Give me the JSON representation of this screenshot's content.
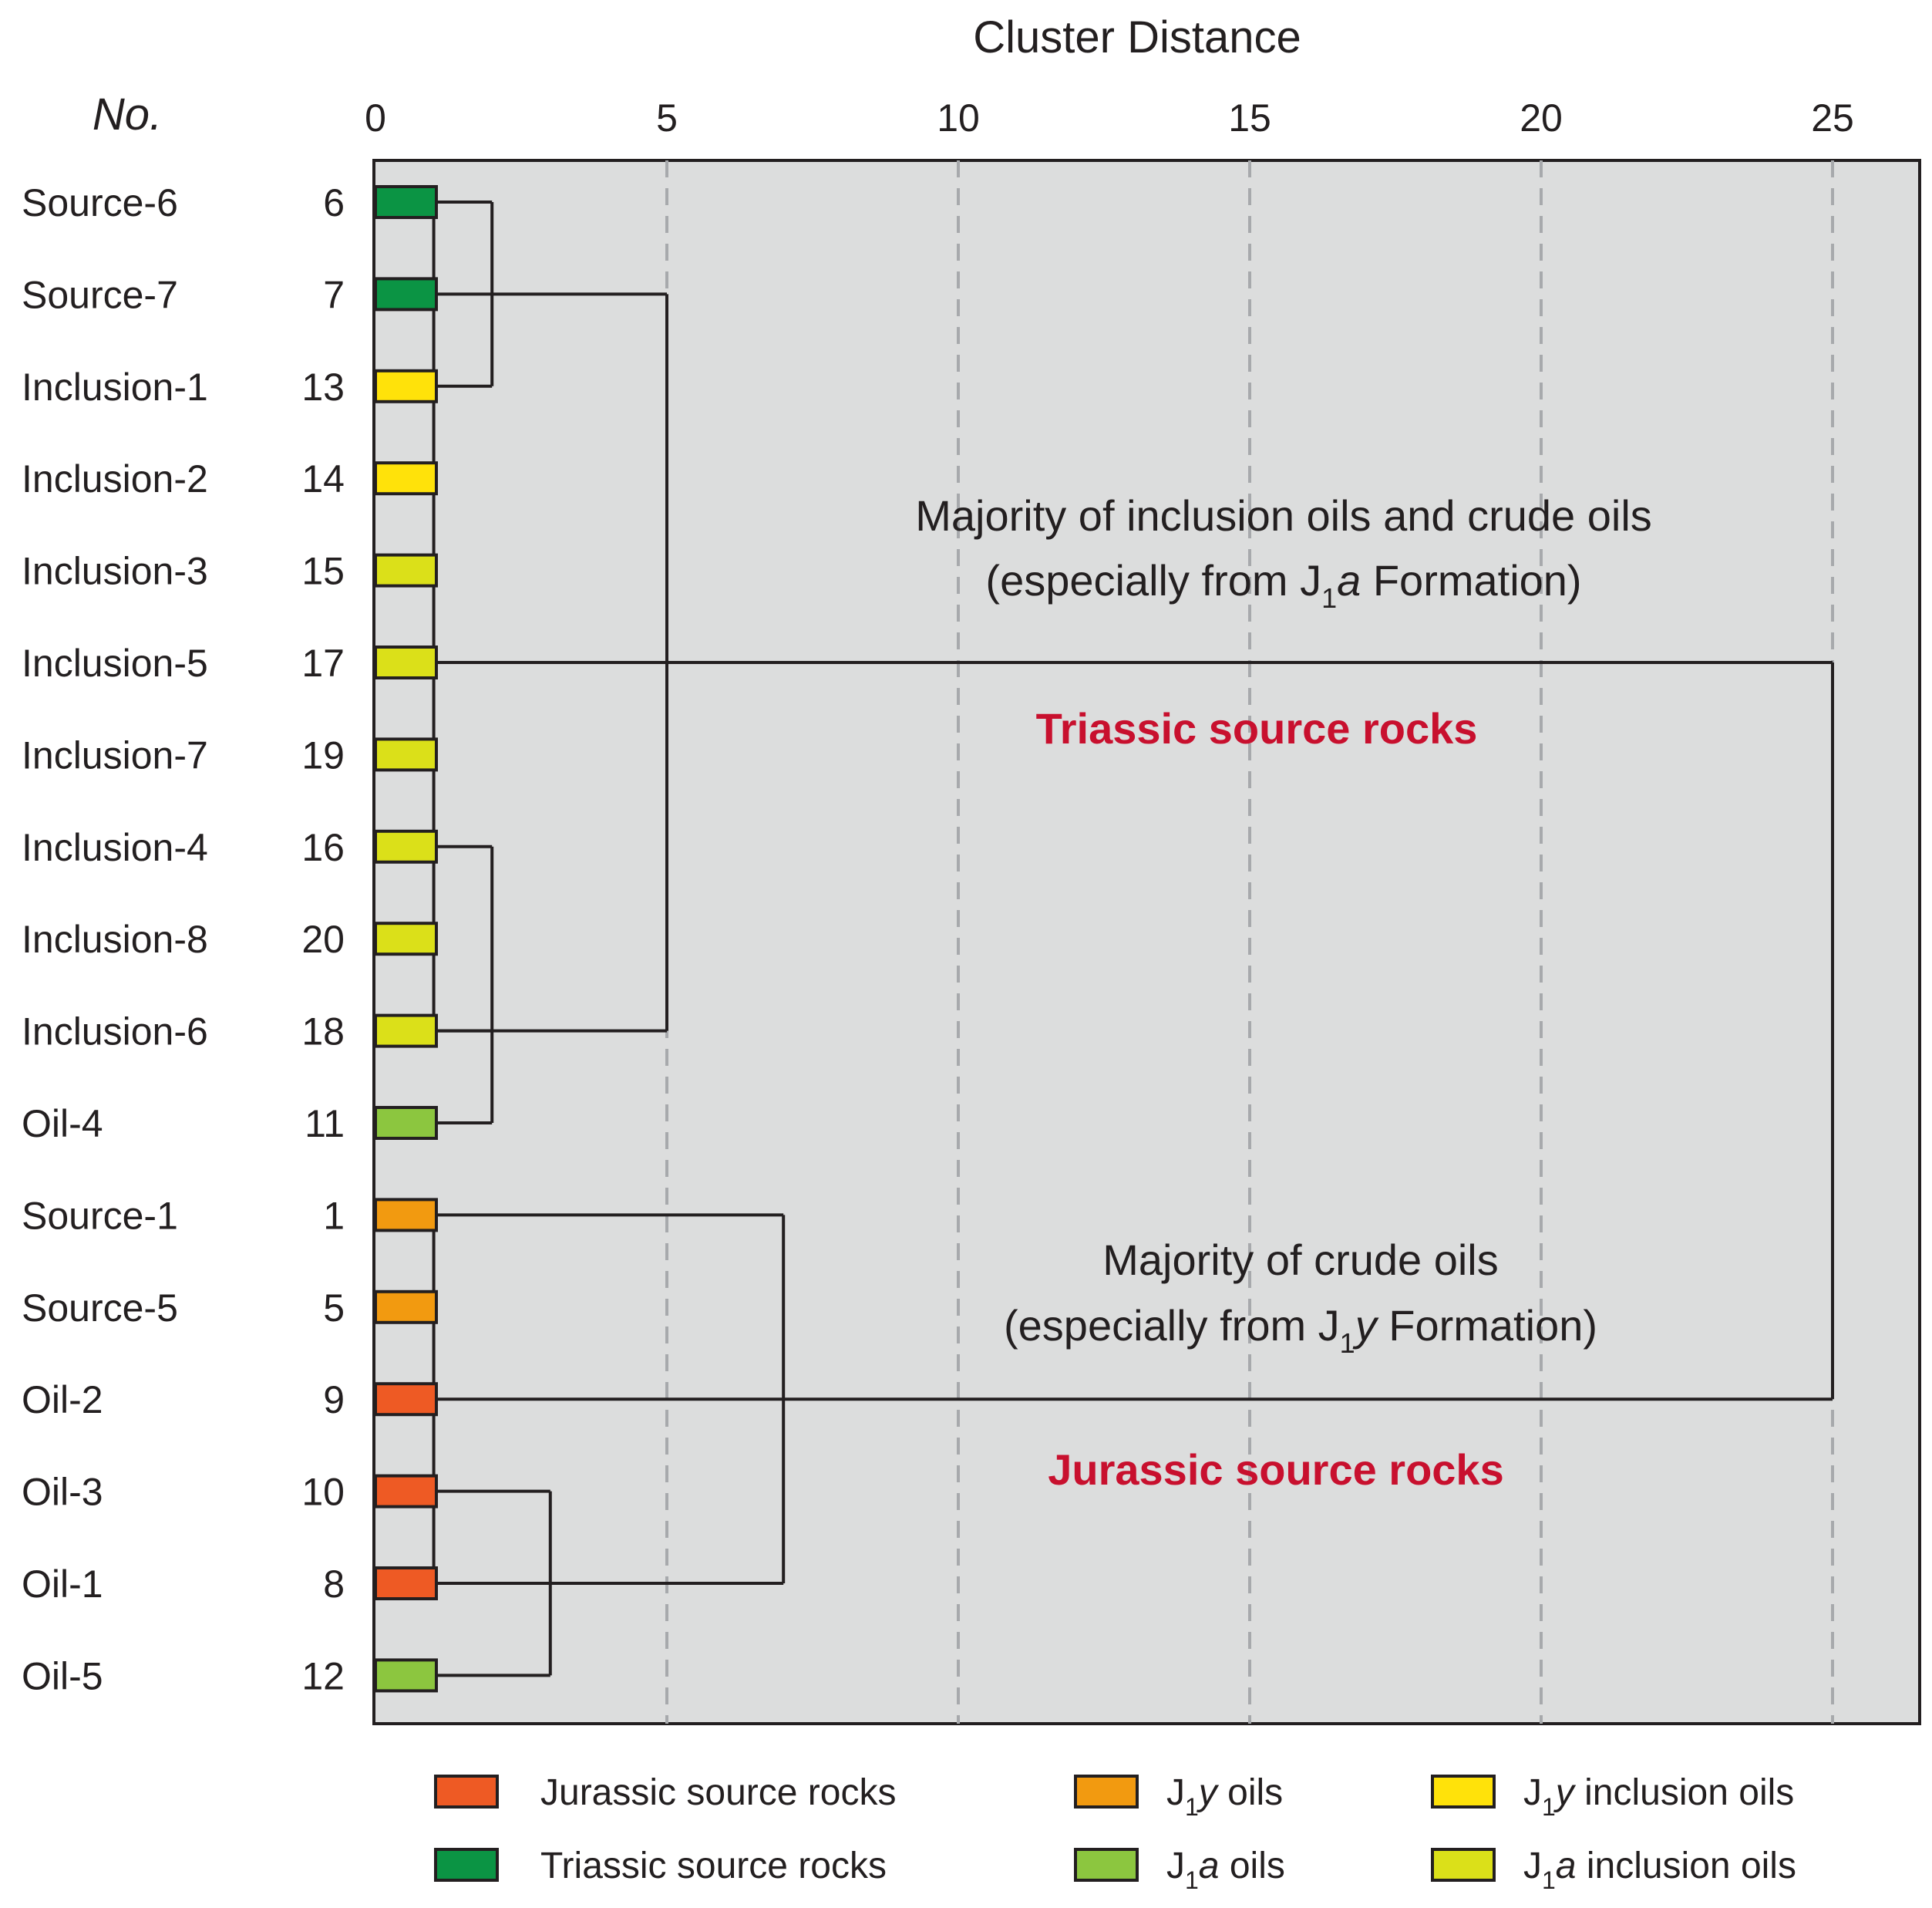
{
  "chart_data": {
    "type": "dendrogram",
    "title": "Cluster Distance",
    "row_header": "No.",
    "xlim": [
      0,
      26.5
    ],
    "xticks": [
      0,
      5,
      10,
      15,
      20,
      25
    ],
    "leaves": [
      {
        "label": "Source-6",
        "no": "6",
        "group": "triassic_source"
      },
      {
        "label": "Source-7",
        "no": "7",
        "group": "triassic_source"
      },
      {
        "label": "Inclusion-1",
        "no": "13",
        "group": "j1y_inclusion"
      },
      {
        "label": "Inclusion-2",
        "no": "14",
        "group": "j1y_inclusion"
      },
      {
        "label": "Inclusion-3",
        "no": "15",
        "group": "j1a_inclusion"
      },
      {
        "label": "Inclusion-5",
        "no": "17",
        "group": "j1a_inclusion"
      },
      {
        "label": "Inclusion-7",
        "no": "19",
        "group": "j1a_inclusion"
      },
      {
        "label": "Inclusion-4",
        "no": "16",
        "group": "j1a_inclusion"
      },
      {
        "label": "Inclusion-8",
        "no": "20",
        "group": "j1a_inclusion"
      },
      {
        "label": "Inclusion-6",
        "no": "18",
        "group": "j1a_inclusion"
      },
      {
        "label": "Oil-4",
        "no": "11",
        "group": "j1a_oil"
      },
      {
        "label": "Source-1",
        "no": "1",
        "group": "j1y_oil"
      },
      {
        "label": "Source-5",
        "no": "5",
        "group": "j1y_oil"
      },
      {
        "label": "Oil-2",
        "no": "9",
        "group": "jurassic_source"
      },
      {
        "label": "Oil-3",
        "no": "10",
        "group": "jurassic_source"
      },
      {
        "label": "Oil-1",
        "no": "8",
        "group": "jurassic_source"
      },
      {
        "label": "Oil-5",
        "no": "12",
        "group": "j1a_oil"
      }
    ],
    "merges": [
      {
        "rows": [
          0,
          1,
          2,
          3,
          4,
          5,
          6,
          7,
          8,
          9
        ],
        "distance": 1.0
      },
      {
        "rows": [
          11,
          12,
          13,
          14,
          15
        ],
        "distance": 1.0
      },
      {
        "rows": [
          0,
          2
        ],
        "distance": 2.0
      },
      {
        "rows": [
          7,
          9,
          10
        ],
        "distance": 2.0
      },
      {
        "rows": [
          14,
          16
        ],
        "distance": 3.0
      },
      {
        "rows": [
          1,
          9
        ],
        "distance": 5.0
      },
      {
        "rows": [
          11,
          15
        ],
        "distance": 7.0
      },
      {
        "rows": [
          5,
          13
        ],
        "distance": 25.0
      }
    ],
    "groups": {
      "jurassic_source": {
        "label": "Jurassic source rocks",
        "color": "#ee5a24"
      },
      "triassic_source": {
        "label": "Triassic source rocks",
        "color": "#0b9444"
      },
      "j1y_oil": {
        "label_pre": "J",
        "sub": "1",
        "italic": "y",
        "label_post": " oils",
        "color": "#f29a10"
      },
      "j1a_oil": {
        "label_pre": "J",
        "sub": "1",
        "italic": "a",
        "label_post": " oils",
        "color": "#8cc63f"
      },
      "j1y_inclusion": {
        "label_pre": "J",
        "sub": "1",
        "italic": "y",
        "label_post": " inclusion oils",
        "color": "#ffe20a"
      },
      "j1a_inclusion": {
        "label_pre": "J",
        "sub": "1",
        "italic": "a",
        "label_post": " inclusion oils",
        "color": "#dbe019"
      }
    },
    "legend_order": [
      "jurassic_source",
      "j1y_oil",
      "j1y_inclusion",
      "triassic_source",
      "j1a_oil",
      "j1a_inclusion"
    ],
    "annotations": {
      "upper_line1": "Majority of inclusion oils and crude oils",
      "upper_line2_pre": "(especially from J",
      "upper_line2_sub": "1",
      "upper_line2_italic": "a",
      "upper_line2_post": " Formation)",
      "upper_label": "Triassic source rocks",
      "lower_line1": "Majority of crude oils",
      "lower_line2_pre": "(especially from J",
      "lower_line2_sub": "1",
      "lower_line2_italic": "y",
      "lower_line2_post": " Formation)",
      "lower_label": "Jurassic source rocks"
    },
    "colors": {
      "plot_background": "#dcdddd",
      "text": "#231f20",
      "highlight": "#c8102e",
      "grid": "#a7a9ac"
    }
  }
}
